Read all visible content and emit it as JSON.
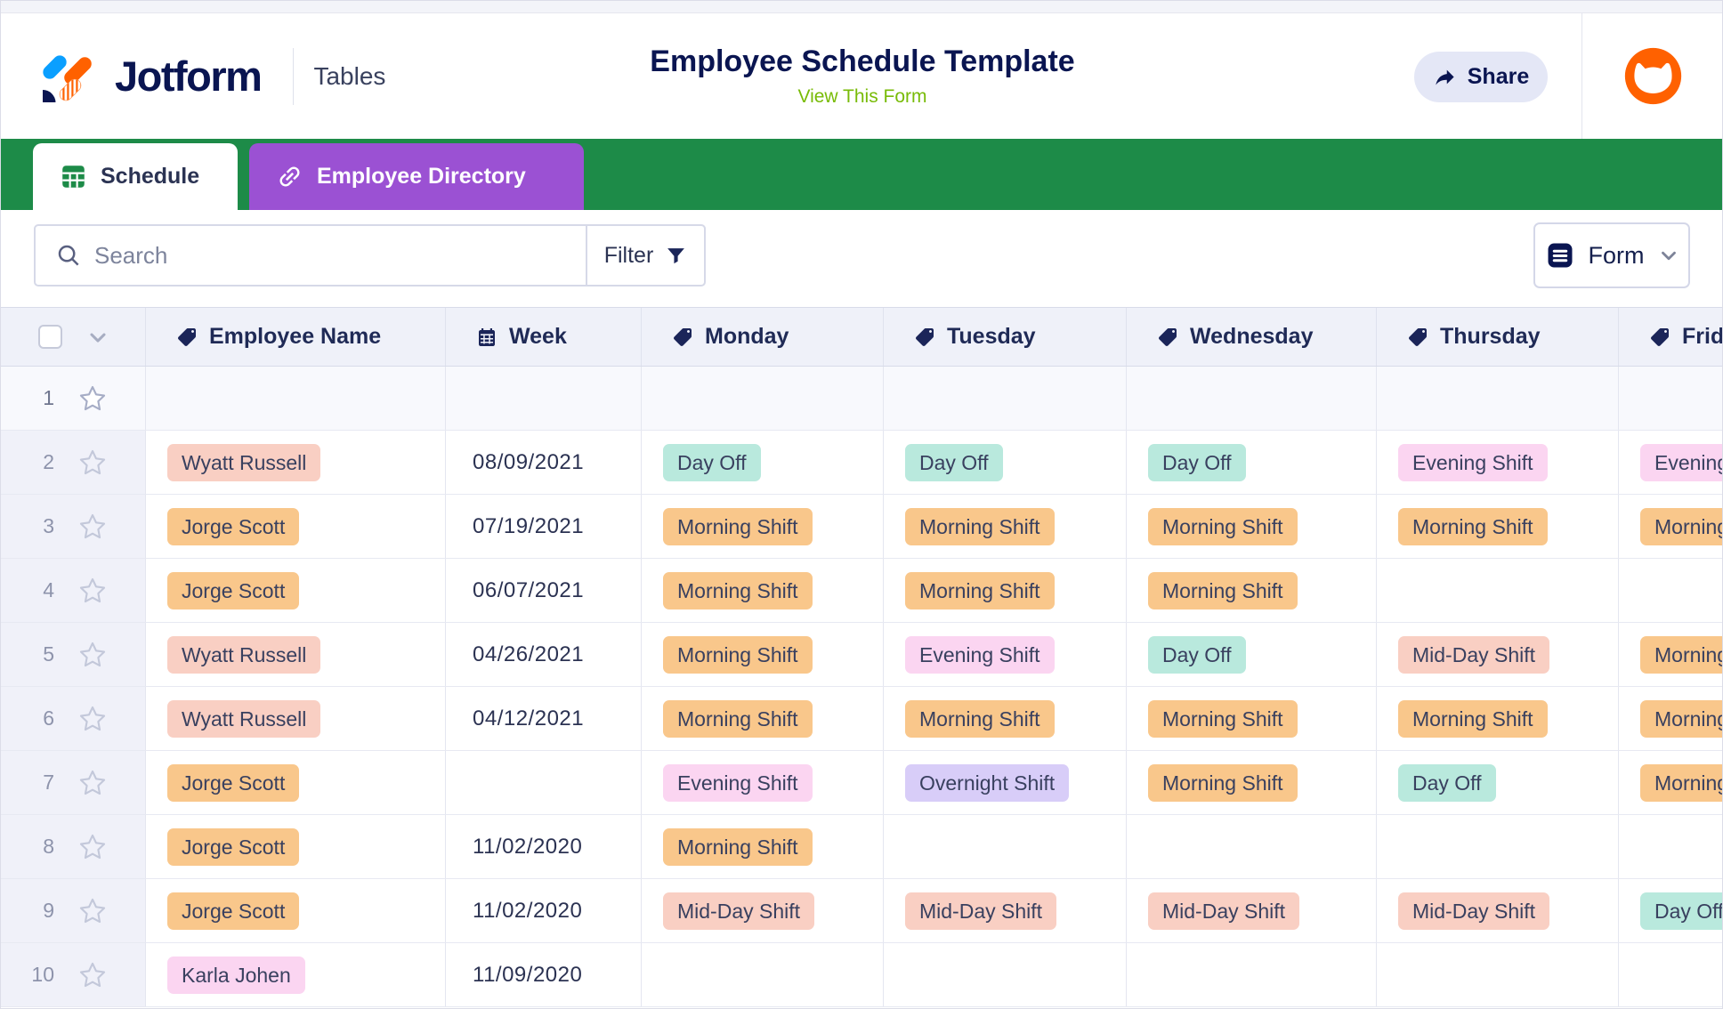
{
  "header": {
    "brand": "Jotform",
    "product": "Tables",
    "title": "Employee Schedule Template",
    "view_form_label": "View This Form",
    "share_label": "Share"
  },
  "tabs": [
    {
      "label": "Schedule",
      "icon": "table-grid-icon",
      "active": true
    },
    {
      "label": "Employee Directory",
      "icon": "link-icon",
      "active": false
    }
  ],
  "toolbar": {
    "search_placeholder": "Search",
    "filter_label": "Filter",
    "form_button_label": "Form"
  },
  "colors": {
    "brand_navy": "#0a1551",
    "tabbar_green": "#1d8b48",
    "directory_tab_purple": "#9b51d3",
    "link_green": "#78bb07",
    "avatar_orange": "#ff6100",
    "badge_salmon": "#f9cfc3",
    "badge_orange": "#f9c78b",
    "badge_teal": "#b9e9dd",
    "badge_pink": "#fbd5f1",
    "badge_purple": "#d8cdf8"
  },
  "table": {
    "columns": [
      {
        "label": "Employee Name",
        "icon": "tag-icon"
      },
      {
        "label": "Week",
        "icon": "calendar-icon"
      },
      {
        "label": "Monday",
        "icon": "tag-icon"
      },
      {
        "label": "Tuesday",
        "icon": "tag-icon"
      },
      {
        "label": "Wednesday",
        "icon": "tag-icon"
      },
      {
        "label": "Thursday",
        "icon": "tag-icon"
      },
      {
        "label": "Friday",
        "icon": "tag-icon"
      }
    ],
    "rows": [
      {
        "num": "1",
        "highlighted": true,
        "employee": null,
        "week": "",
        "days": [
          null,
          null,
          null,
          null,
          null
        ]
      },
      {
        "num": "2",
        "employee": {
          "text": "Wyatt Russell",
          "color": "salmon"
        },
        "week": "08/09/2021",
        "days": [
          {
            "text": "Day Off",
            "color": "teal"
          },
          {
            "text": "Day Off",
            "color": "teal"
          },
          {
            "text": "Day Off",
            "color": "teal"
          },
          {
            "text": "Evening Shift",
            "color": "pink"
          },
          {
            "text": "Evening Shift",
            "color": "pink"
          }
        ]
      },
      {
        "num": "3",
        "employee": {
          "text": "Jorge Scott",
          "color": "orange"
        },
        "week": "07/19/2021",
        "days": [
          {
            "text": "Morning Shift",
            "color": "orange"
          },
          {
            "text": "Morning Shift",
            "color": "orange"
          },
          {
            "text": "Morning Shift",
            "color": "orange"
          },
          {
            "text": "Morning Shift",
            "color": "orange"
          },
          {
            "text": "Morning Shift",
            "color": "orange"
          }
        ]
      },
      {
        "num": "4",
        "employee": {
          "text": "Jorge Scott",
          "color": "orange"
        },
        "week": "06/07/2021",
        "days": [
          {
            "text": "Morning Shift",
            "color": "orange"
          },
          {
            "text": "Morning Shift",
            "color": "orange"
          },
          {
            "text": "Morning Shift",
            "color": "orange"
          },
          null,
          null
        ]
      },
      {
        "num": "5",
        "employee": {
          "text": "Wyatt Russell",
          "color": "salmon"
        },
        "week": "04/26/2021",
        "days": [
          {
            "text": "Morning Shift",
            "color": "orange"
          },
          {
            "text": "Evening Shift",
            "color": "pink"
          },
          {
            "text": "Day Off",
            "color": "teal"
          },
          {
            "text": "Mid-Day Shift",
            "color": "salmon"
          },
          {
            "text": "Morning Shift",
            "color": "orange"
          }
        ]
      },
      {
        "num": "6",
        "employee": {
          "text": "Wyatt Russell",
          "color": "salmon"
        },
        "week": "04/12/2021",
        "days": [
          {
            "text": "Morning Shift",
            "color": "orange"
          },
          {
            "text": "Morning Shift",
            "color": "orange"
          },
          {
            "text": "Morning Shift",
            "color": "orange"
          },
          {
            "text": "Morning Shift",
            "color": "orange"
          },
          {
            "text": "Morning Shift",
            "color": "orange"
          }
        ]
      },
      {
        "num": "7",
        "employee": {
          "text": "Jorge Scott",
          "color": "orange"
        },
        "week": "",
        "days": [
          {
            "text": "Evening Shift",
            "color": "pink"
          },
          {
            "text": "Overnight Shift",
            "color": "purple"
          },
          {
            "text": "Morning Shift",
            "color": "orange"
          },
          {
            "text": "Day Off",
            "color": "teal"
          },
          {
            "text": "Morning Shift",
            "color": "orange"
          }
        ]
      },
      {
        "num": "8",
        "employee": {
          "text": "Jorge Scott",
          "color": "orange"
        },
        "week": "11/02/2020",
        "days": [
          {
            "text": "Morning Shift",
            "color": "orange"
          },
          null,
          null,
          null,
          null
        ]
      },
      {
        "num": "9",
        "employee": {
          "text": "Jorge Scott",
          "color": "orange"
        },
        "week": "11/02/2020",
        "days": [
          {
            "text": "Mid-Day Shift",
            "color": "salmon"
          },
          {
            "text": "Mid-Day Shift",
            "color": "salmon"
          },
          {
            "text": "Mid-Day Shift",
            "color": "salmon"
          },
          {
            "text": "Mid-Day Shift",
            "color": "salmon"
          },
          {
            "text": "Day Off",
            "color": "teal"
          }
        ]
      },
      {
        "num": "10",
        "employee": {
          "text": "Karla Johen",
          "color": "pink"
        },
        "week": "11/09/2020",
        "days": [
          null,
          null,
          null,
          null,
          null
        ]
      }
    ]
  }
}
